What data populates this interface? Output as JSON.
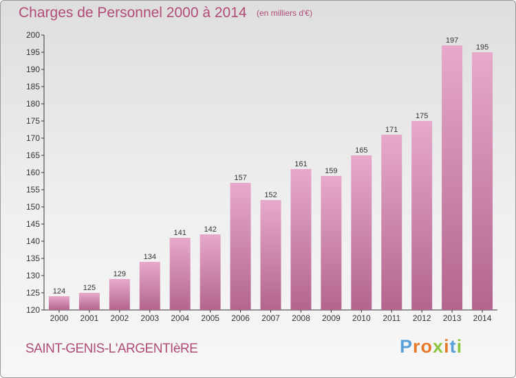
{
  "header": {
    "title": "Charges de Personnel 2000 à 2014",
    "subtitle": "(en milliers d'€)"
  },
  "footer": {
    "commune": "SAINT-GENIS-L'ARGENTIèRE",
    "logo_text": "Proxiti"
  },
  "colors": {
    "title": "#b04c77",
    "bar_top": "#e7a9cb",
    "bar_bottom": "#b3658f",
    "logo": [
      "#5aa0d8",
      "#e8792a",
      "#e8792a",
      "#8cc63f",
      "#e8792a",
      "#5aa0d8",
      "#8cc63f"
    ]
  },
  "chart_data": {
    "type": "bar",
    "title": "Charges de Personnel 2000 à 2014",
    "subtitle": "(en milliers d'€)",
    "categories": [
      "2000",
      "2001",
      "2002",
      "2003",
      "2004",
      "2005",
      "2006",
      "2007",
      "2008",
      "2009",
      "2010",
      "2011",
      "2012",
      "2013",
      "2014"
    ],
    "values": [
      124,
      125,
      129,
      134,
      141,
      142,
      157,
      152,
      161,
      159,
      165,
      171,
      175,
      197,
      195
    ],
    "ylim": [
      120,
      200
    ],
    "yticks": [
      120,
      125,
      130,
      135,
      140,
      145,
      150,
      155,
      160,
      165,
      170,
      175,
      180,
      185,
      190,
      195,
      200
    ],
    "grid": false,
    "data_labels": true
  }
}
